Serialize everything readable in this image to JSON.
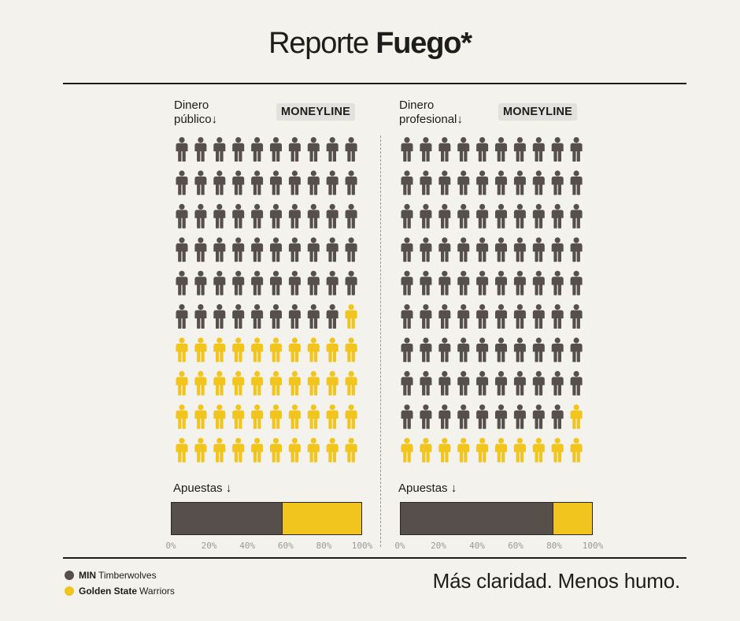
{
  "header": {
    "title_light": "Reporte ",
    "title_bold": "Fuego*"
  },
  "colors": {
    "team_a": "#564f4b",
    "team_b": "#f2c51e"
  },
  "chart_data": [
    {
      "type": "pictogram",
      "label_line1": "Dinero",
      "label_line2": "público↓",
      "badge": "MONEYLINE",
      "icon": "person-icon",
      "total_icons": 100,
      "values": {
        "MIN Timberwolves": 59,
        "Golden State Warriors": 41
      },
      "bets_label": "Apuestas ↓",
      "bets": {
        "MIN Timberwolves": 58,
        "Golden State Warriors": 42
      },
      "ticks": [
        "0%",
        "20%",
        "40%",
        "60%",
        "80%",
        "100%"
      ]
    },
    {
      "type": "pictogram",
      "label_line1": "Dinero",
      "label_line2": "profesional↓",
      "badge": "MONEYLINE",
      "icon": "person-icon",
      "total_icons": 100,
      "values": {
        "MIN Timberwolves": 89,
        "Golden State Warriors": 11
      },
      "bets_label": "Apuestas ↓",
      "bets": {
        "MIN Timberwolves": 79,
        "Golden State Warriors": 21
      },
      "ticks": [
        "0%",
        "20%",
        "40%",
        "60%",
        "80%",
        "100%"
      ]
    }
  ],
  "legend": [
    {
      "abbr": "MIN",
      "name": "Timberwolves",
      "color": "#564f4b"
    },
    {
      "abbr": "Golden State",
      "name": "Warriors",
      "color": "#f2c51e"
    }
  ],
  "tagline": "Más claridad. Menos humo."
}
